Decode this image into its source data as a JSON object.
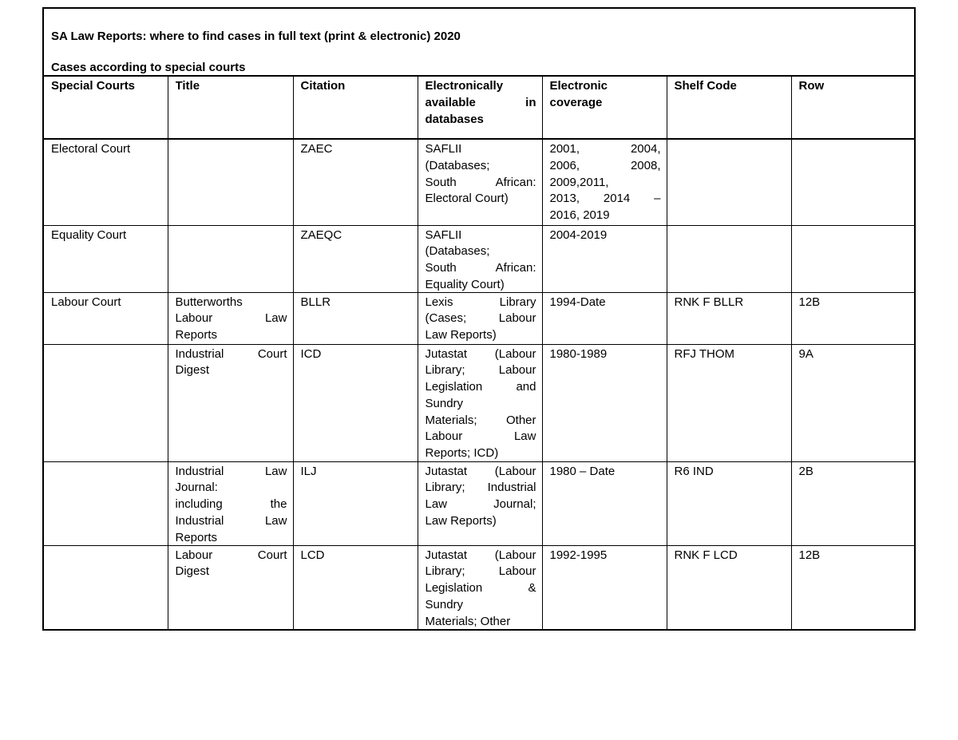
{
  "title": "SA Law Reports: where to find cases in full text (print & electronic) 2020",
  "subtitle": "Cases according to special courts",
  "columns": [
    [
      "Special Courts"
    ],
    [
      "Title"
    ],
    [
      "Citation"
    ],
    [
      "Electronically",
      "available in",
      "databases"
    ],
    [
      "Electronic",
      "coverage"
    ],
    [
      "Shelf Code"
    ],
    [
      "Row"
    ]
  ],
  "rows": [
    [
      [
        "Electoral Court"
      ],
      [],
      [
        "ZAEC"
      ],
      [
        "SAFLII",
        "(Databases;",
        "South African:",
        "Electoral Court)"
      ],
      [
        "2001, 2004,",
        "2006, 2008,",
        "2009,2011,",
        "2013, 2014 –",
        "2016, 2019"
      ],
      [],
      []
    ],
    [
      [
        "Equality Court"
      ],
      [],
      [
        "ZAEQC"
      ],
      [
        "SAFLII",
        "(Databases;",
        "South African:",
        "Equality Court)"
      ],
      [
        "2004-2019"
      ],
      [],
      []
    ],
    [
      [
        "Labour Court"
      ],
      [
        "Butterworths",
        "Labour Law",
        "Reports"
      ],
      [
        "BLLR"
      ],
      [
        "Lexis Library",
        "(Cases; Labour",
        "Law Reports)"
      ],
      [
        "1994-Date"
      ],
      [
        "RNK F BLLR"
      ],
      [
        "12B"
      ]
    ],
    [
      [],
      [
        "Industrial Court",
        "Digest"
      ],
      [
        "ICD"
      ],
      [
        "Jutastat (Labour",
        "Library; Labour",
        "Legislation and",
        "Sundry",
        "Materials; Other",
        "Labour Law",
        "Reports; ICD)"
      ],
      [
        "1980-1989"
      ],
      [
        "RFJ THOM"
      ],
      [
        "9A"
      ]
    ],
    [
      [],
      [
        "Industrial Law",
        "Journal:",
        "including the",
        "Industrial Law",
        "Reports"
      ],
      [
        "ILJ"
      ],
      [
        "Jutastat (Labour",
        "Library; Industrial",
        "Law Journal;",
        "Law Reports)"
      ],
      [
        "1980 – Date"
      ],
      [
        "R6 IND"
      ],
      [
        "2B"
      ]
    ],
    [
      [],
      [
        "Labour Court",
        "Digest"
      ],
      [
        "LCD"
      ],
      [
        "Jutastat (Labour",
        "Library; Labour",
        "Legislation &",
        "Sundry",
        "Materials; Other"
      ],
      [
        "1992-1995"
      ],
      [
        "RNK F LCD"
      ],
      [
        "12B"
      ]
    ]
  ]
}
